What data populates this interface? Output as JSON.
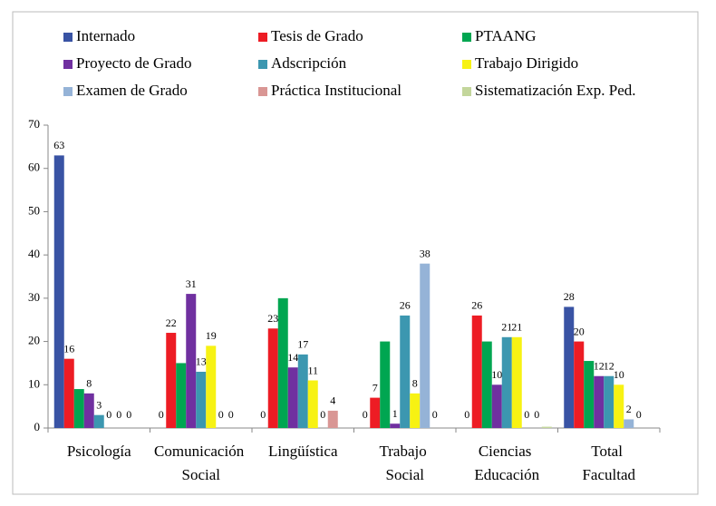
{
  "chart_data": {
    "type": "bar",
    "categories": [
      "Psicología",
      "Comunicación Social",
      "Lingüística",
      "Trabajo Social",
      "Ciencias Educación",
      "Total Facultad"
    ],
    "series": [
      {
        "name": "Internado",
        "color": "#3953a4",
        "data_labels": true,
        "values": [
          63,
          0,
          0,
          0,
          0,
          28
        ]
      },
      {
        "name": "Tesis de Grado",
        "color": "#ed1c24",
        "data_labels": true,
        "values": [
          16,
          22,
          23,
          7,
          26,
          20
        ]
      },
      {
        "name": "PTAANG",
        "color": "#00a651",
        "data_labels": false,
        "values": [
          9,
          15,
          30,
          20,
          20,
          15.5
        ]
      },
      {
        "name": "Proyecto de Grado",
        "color": "#7030a0",
        "data_labels": true,
        "values": [
          8,
          31,
          14,
          1,
          10,
          12
        ]
      },
      {
        "name": "Adscripción",
        "color": "#3c97b0",
        "data_labels": true,
        "values": [
          3,
          13,
          17,
          26,
          21,
          12
        ]
      },
      {
        "name": "Trabajo Dirigido",
        "color": "#f7f213",
        "data_labels": true,
        "values": [
          0,
          19,
          11,
          8,
          21,
          10
        ]
      },
      {
        "name": "Examen de Grado",
        "color": "#95b3d7",
        "data_labels": true,
        "values": [
          0,
          0,
          0,
          38,
          0,
          2
        ]
      },
      {
        "name": "Práctica Institucional",
        "color": "#d99694",
        "data_labels": true,
        "values": [
          0,
          0,
          4,
          0,
          0,
          0
        ]
      },
      {
        "name": "Sistematización Exp. Ped.",
        "color": "#c3d69b",
        "data_labels": false,
        "values": [
          0,
          0,
          0,
          0,
          0.3,
          0
        ]
      }
    ],
    "ylim": [
      0,
      70
    ],
    "yticks": [
      0,
      10,
      20,
      30,
      40,
      50,
      60,
      70
    ],
    "grid": false,
    "legend": "top"
  }
}
